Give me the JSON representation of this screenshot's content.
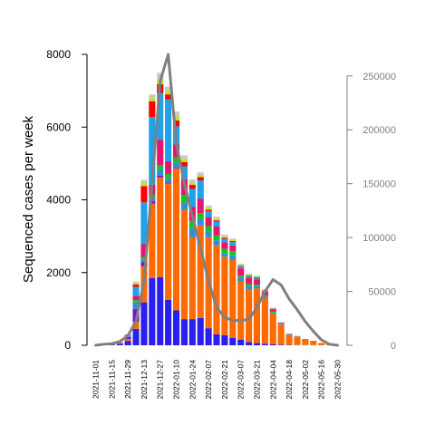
{
  "chart_data": {
    "type": "bar",
    "ylabel": "Sequenced cases per week",
    "ylim": [
      0,
      8000
    ],
    "y_ticks": [
      "0",
      "2000",
      "4000",
      "6000",
      "8000"
    ],
    "y2lim": [
      0,
      270000
    ],
    "y2_ticks": [
      "0",
      "50000",
      "100000",
      "150000",
      "200000",
      "250000"
    ],
    "x_ticks": [
      "2021-11-01",
      "2021-11-15",
      "2021-11-29",
      "2021-12-13",
      "2021-12-27",
      "2022-01-10",
      "2022-01-24",
      "2022-02-07",
      "2022-02-21",
      "2022-03-07",
      "2022-03-21",
      "2022-04-04",
      "2022-04-18",
      "2022-05-02",
      "2022-05-16",
      "2022-05-30"
    ],
    "categories": [
      "2021-11-01",
      "2021-11-08",
      "2021-11-15",
      "2021-11-22",
      "2021-11-29",
      "2021-12-06",
      "2021-12-13",
      "2021-12-20",
      "2021-12-27",
      "2022-01-03",
      "2022-01-10",
      "2022-01-17",
      "2022-01-24",
      "2022-01-31",
      "2022-02-07",
      "2022-02-14",
      "2022-02-21",
      "2022-02-28",
      "2022-03-07",
      "2022-03-14",
      "2022-03-21",
      "2022-03-28",
      "2022-04-04",
      "2022-04-11",
      "2022-04-18",
      "2022-04-25",
      "2022-05-02",
      "2022-05-09",
      "2022-05-16",
      "2022-05-23",
      "2022-05-30"
    ],
    "series": [
      {
        "color": "#2b1ff0",
        "values": [
          0,
          5,
          15,
          40,
          120,
          450,
          1180,
          1850,
          1870,
          1250,
          960,
          720,
          720,
          750,
          470,
          300,
          280,
          200,
          150,
          90,
          60,
          40,
          25,
          15,
          10,
          5,
          5,
          3,
          2,
          1,
          0
        ]
      },
      {
        "color": "#ff6a00",
        "values": [
          0,
          10,
          20,
          20,
          50,
          200,
          1000,
          2050,
          2750,
          3200,
          3900,
          3000,
          2250,
          2550,
          2500,
          2450,
          2150,
          2150,
          1600,
          1450,
          1500,
          1250,
          850,
          550,
          280,
          230,
          160,
          120,
          60,
          30,
          0
        ]
      },
      {
        "color": "#7a14c8",
        "values": [
          0,
          0,
          5,
          10,
          60,
          350,
          100,
          70,
          40,
          30,
          20,
          10,
          10,
          5,
          5,
          5,
          5,
          5,
          5,
          5,
          5,
          5,
          0,
          0,
          0,
          0,
          0,
          0,
          0,
          0,
          0
        ]
      },
      {
        "color": "#2e8fd6",
        "values": [
          0,
          0,
          0,
          10,
          30,
          180,
          80,
          90,
          190,
          110,
          140,
          200,
          240,
          170,
          150,
          130,
          100,
          120,
          100,
          90,
          60,
          40,
          30,
          15,
          10,
          5,
          5,
          0,
          0,
          0,
          0
        ]
      },
      {
        "color": "#19c219",
        "values": [
          0,
          0,
          0,
          0,
          10,
          60,
          70,
          80,
          110,
          120,
          150,
          200,
          200,
          160,
          150,
          140,
          120,
          110,
          60,
          50,
          40,
          30,
          20,
          10,
          5,
          5,
          0,
          0,
          0,
          0,
          0
        ]
      },
      {
        "color": "#e6156e",
        "values": [
          0,
          0,
          0,
          0,
          10,
          120,
          350,
          280,
          700,
          350,
          350,
          430,
          380,
          390,
          250,
          240,
          180,
          160,
          200,
          170,
          150,
          110,
          60,
          20,
          10,
          5,
          5,
          0,
          0,
          0,
          0
        ]
      },
      {
        "color": "#1fa2e8",
        "values": [
          0,
          0,
          0,
          0,
          20,
          250,
          1150,
          1860,
          1280,
          1700,
          500,
          360,
          500,
          510,
          160,
          130,
          90,
          90,
          50,
          40,
          40,
          25,
          20,
          10,
          5,
          5,
          0,
          0,
          0,
          0,
          0
        ]
      },
      {
        "color": "#ff0000",
        "values": [
          0,
          0,
          0,
          0,
          0,
          60,
          450,
          430,
          240,
          140,
          160,
          120,
          110,
          90,
          40,
          40,
          30,
          30,
          20,
          20,
          15,
          10,
          5,
          5,
          0,
          0,
          0,
          0,
          0,
          0,
          0
        ]
      },
      {
        "color": "#b7e820",
        "values": [
          0,
          0,
          0,
          0,
          0,
          40,
          90,
          90,
          150,
          100,
          120,
          90,
          70,
          60,
          60,
          50,
          40,
          30,
          30,
          25,
          20,
          15,
          10,
          5,
          0,
          0,
          0,
          0,
          0,
          0,
          0
        ]
      },
      {
        "color": "#c8c8c8",
        "values": [
          0,
          0,
          0,
          0,
          0,
          40,
          80,
          100,
          160,
          110,
          130,
          90,
          80,
          70,
          60,
          50,
          50,
          40,
          30,
          30,
          25,
          20,
          10,
          5,
          5,
          0,
          0,
          0,
          0,
          0,
          0
        ]
      }
    ],
    "line": {
      "color": "#808080",
      "axis": "right",
      "values": [
        0,
        1000,
        1500,
        3500,
        9000,
        22000,
        60000,
        150000,
        245000,
        270000,
        188000,
        150000,
        120000,
        90000,
        60000,
        35000,
        26000,
        23000,
        23000,
        24000,
        35000,
        50000,
        61000,
        56000,
        43000,
        33000,
        22000,
        13000,
        5000,
        1000,
        0
      ]
    }
  }
}
